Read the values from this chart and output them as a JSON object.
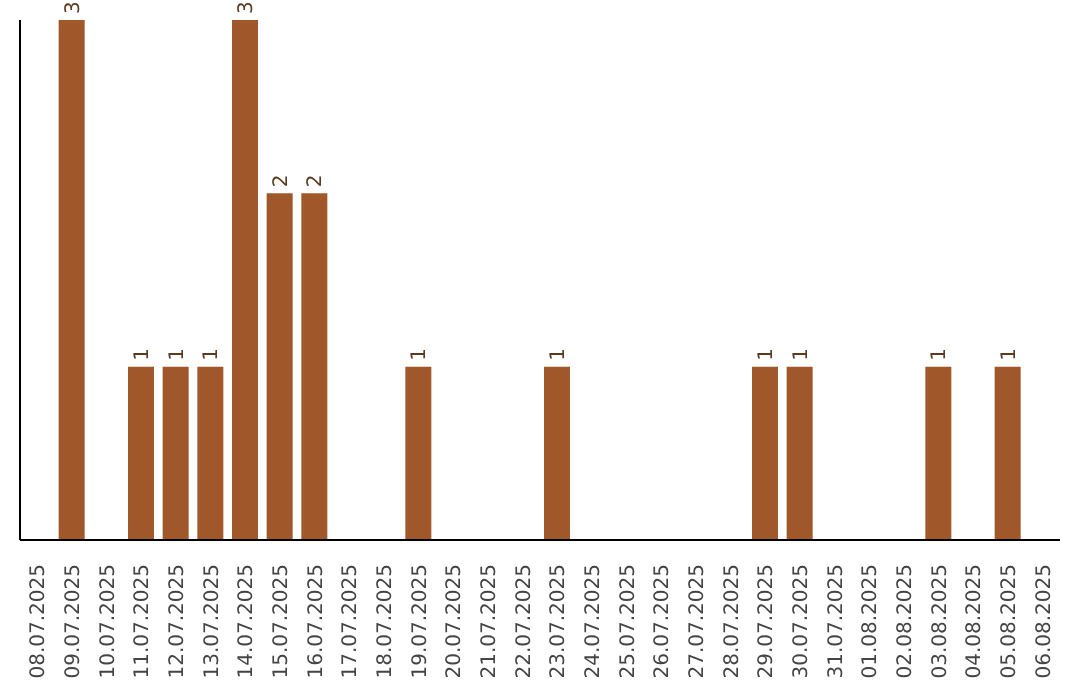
{
  "chart_data": {
    "type": "bar",
    "categories": [
      "08.07.2025",
      "09.07.2025",
      "10.07.2025",
      "11.07.2025",
      "12.07.2025",
      "13.07.2025",
      "14.07.2025",
      "15.07.2025",
      "16.07.2025",
      "17.07.2025",
      "18.07.2025",
      "19.07.2025",
      "20.07.2025",
      "21.07.2025",
      "22.07.2025",
      "23.07.2025",
      "24.07.2025",
      "25.07.2025",
      "26.07.2025",
      "27.07.2025",
      "28.07.2025",
      "29.07.2025",
      "30.07.2025",
      "31.07.2025",
      "01.08.2025",
      "02.08.2025",
      "03.08.2025",
      "04.08.2025",
      "05.08.2025",
      "06.08.2025"
    ],
    "values": [
      0,
      3,
      0,
      1,
      1,
      1,
      3,
      2,
      2,
      0,
      0,
      1,
      0,
      0,
      0,
      1,
      0,
      0,
      0,
      0,
      0,
      1,
      1,
      0,
      0,
      0,
      1,
      0,
      1,
      0
    ],
    "value_labels": [
      null,
      "3",
      null,
      "1",
      "1",
      "1",
      "3",
      "2",
      "2",
      null,
      null,
      "1",
      null,
      null,
      null,
      "1",
      null,
      null,
      null,
      null,
      null,
      "1",
      "1",
      null,
      null,
      null,
      "1",
      null,
      "1",
      null
    ],
    "color": "#a0572a",
    "grid": false,
    "legend": false
  }
}
